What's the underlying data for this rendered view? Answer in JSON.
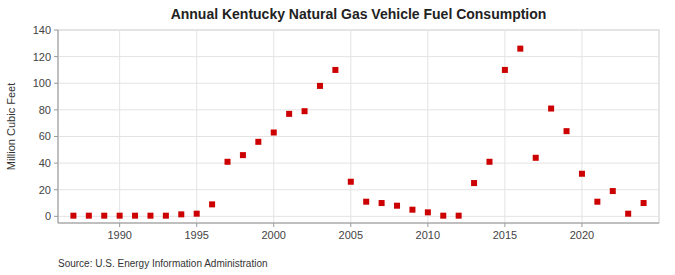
{
  "chart_data": {
    "type": "scatter",
    "title": "Annual Kentucky Natural Gas Vehicle Fuel Consumption",
    "y_label": "Million Cubic Feet",
    "annotations": [
      "Source: U.S. Energy Information Administration"
    ],
    "x": [
      1987,
      1988,
      1989,
      1990,
      1991,
      1992,
      1993,
      1994,
      1995,
      1996,
      1997,
      1998,
      1999,
      2000,
      2001,
      2002,
      2003,
      2004,
      2005,
      2006,
      2007,
      2008,
      2009,
      2010,
      2011,
      2012,
      2013,
      2014,
      2015,
      2016,
      2017,
      2018,
      2019,
      2020,
      2021,
      2022,
      2023,
      2024
    ],
    "values": [
      0.5,
      0.5,
      0.5,
      0.5,
      0.5,
      0.5,
      0.5,
      1.5,
      2.0,
      9.0,
      41.0,
      46.0,
      56.0,
      63.0,
      77.0,
      79.0,
      98.0,
      110.0,
      26.0,
      11.0,
      10.0,
      8.0,
      5.0,
      3.0,
      0.5,
      0.5,
      25.0,
      41.0,
      110.0,
      126.0,
      44.0,
      81.0,
      64.0,
      32.0,
      11.0,
      19.0,
      2.0,
      10.0
    ],
    "color": "#cc0000",
    "marker": "square",
    "xlim": [
      1986,
      2025
    ],
    "ylim": [
      -5,
      140
    ],
    "xticks": [
      1990,
      1995,
      2000,
      2005,
      2010,
      2015,
      2020
    ],
    "yticks": [
      0,
      20,
      40,
      60,
      80,
      100,
      120,
      140
    ],
    "grid": true
  }
}
